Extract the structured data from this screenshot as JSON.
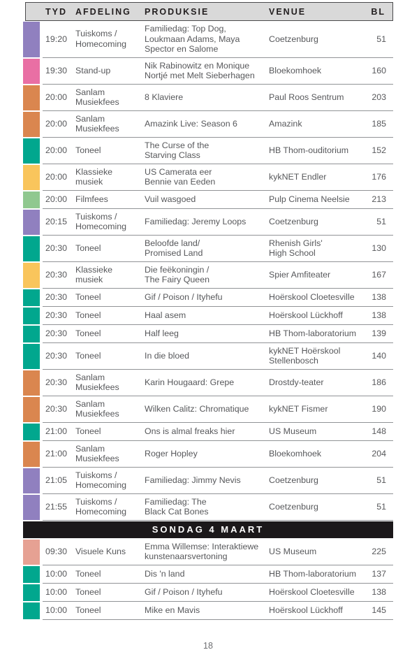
{
  "page": {
    "number": "18"
  },
  "table": {
    "headers": [
      "TYD",
      "AFDELING",
      "PRODUKSIE",
      "VENUE",
      "BL"
    ],
    "category_colors": {
      "tuiskoms": "#9080bf",
      "standup": "#e96fa4",
      "sanlam": "#da864f",
      "toneel": "#01a78e",
      "klassiek": "#f9c55c",
      "filmfees": "#90c88f",
      "visuele": "#e6a193"
    },
    "sections": [
      {
        "banner": null,
        "rows": [
          {
            "tyd": "19:20",
            "category": "tuiskoms",
            "afdeling": "Tuiskoms /\nHomecoming",
            "produksie": "Familiedag: Top Dog,\nLoukmaan Adams, Maya\nSpector en Salome",
            "venue": "Coetzenburg",
            "bl": "51"
          },
          {
            "tyd": "19:30",
            "category": "standup",
            "afdeling": "Stand-up",
            "produksie": "Nik Rabinowitz en Monique\nNortjé met Melt Sieberhagen",
            "venue": "Bloekomhoek",
            "bl": "160"
          },
          {
            "tyd": "20:00",
            "category": "sanlam",
            "afdeling": "Sanlam\nMusiekfees",
            "produksie": "8 Klaviere",
            "venue": "Paul Roos Sentrum",
            "bl": "203"
          },
          {
            "tyd": "20:00",
            "category": "sanlam",
            "afdeling": "Sanlam\nMusiekfees",
            "produksie": "Amazink Live: Season 6",
            "venue": "Amazink",
            "bl": "185"
          },
          {
            "tyd": "20:00",
            "category": "toneel",
            "afdeling": "Toneel",
            "produksie": "The Curse of the\nStarving Class",
            "venue": "HB Thom-ouditorium",
            "bl": "152"
          },
          {
            "tyd": "20:00",
            "category": "klassiek",
            "afdeling": "Klassieke\nmusiek",
            "produksie": "US Camerata eer\nBennie van Eeden",
            "venue": "kykNET Endler",
            "bl": "176"
          },
          {
            "tyd": "20:00",
            "category": "filmfees",
            "afdeling": "Filmfees",
            "produksie": "Vuil wasgoed",
            "venue": "Pulp Cinema Neelsie",
            "bl": "213"
          },
          {
            "tyd": "20:15",
            "category": "tuiskoms",
            "afdeling": "Tuiskoms /\nHomecoming",
            "produksie": "Familiedag: Jeremy Loops",
            "venue": "Coetzenburg",
            "bl": "51"
          },
          {
            "tyd": "20:30",
            "category": "toneel",
            "afdeling": "Toneel",
            "produksie": "Beloofde land/\nPromised Land",
            "venue": "Rhenish Girls'\nHigh School",
            "bl": "130"
          },
          {
            "tyd": "20:30",
            "category": "klassiek",
            "afdeling": "Klassieke\nmusiek",
            "produksie": "Die feëkoningin /\nThe Fairy Queen",
            "venue": "Spier Amfiteater",
            "bl": "167"
          },
          {
            "tyd": "20:30",
            "category": "toneel",
            "afdeling": "Toneel",
            "produksie": "Gif / Poison / Ityhefu",
            "venue": "Hoërskool Cloetesville",
            "bl": "138"
          },
          {
            "tyd": "20:30",
            "category": "toneel",
            "afdeling": "Toneel",
            "produksie": "Haal asem",
            "venue": "Hoërskool Lückhoff",
            "bl": "138"
          },
          {
            "tyd": "20:30",
            "category": "toneel",
            "afdeling": "Toneel",
            "produksie": "Half leeg",
            "venue": "HB Thom-laboratorium",
            "bl": "139"
          },
          {
            "tyd": "20:30",
            "category": "toneel",
            "afdeling": "Toneel",
            "produksie": "In die bloed",
            "venue": "kykNET Hoërskool\nStellenbosch",
            "bl": "140"
          },
          {
            "tyd": "20:30",
            "category": "sanlam",
            "afdeling": "Sanlam\nMusiekfees",
            "produksie": "Karin Hougaard: Grepe",
            "venue": "Drostdy-teater",
            "bl": "186"
          },
          {
            "tyd": "20:30",
            "category": "sanlam",
            "afdeling": "Sanlam\nMusiekfees",
            "produksie": "Wilken Calitz: Chromatique",
            "venue": "kykNET Fismer",
            "bl": "190"
          },
          {
            "tyd": "21:00",
            "category": "toneel",
            "afdeling": "Toneel",
            "produksie": "Ons is almal freaks hier",
            "venue": "US Museum",
            "bl": "148"
          },
          {
            "tyd": "21:00",
            "category": "sanlam",
            "afdeling": "Sanlam\nMusiekfees",
            "produksie": "Roger Hopley",
            "venue": "Bloekomhoek",
            "bl": "204"
          },
          {
            "tyd": "21:05",
            "category": "tuiskoms",
            "afdeling": "Tuiskoms /\nHomecoming",
            "produksie": "Familiedag: Jimmy Nevis",
            "venue": "Coetzenburg",
            "bl": "51"
          },
          {
            "tyd": "21:55",
            "category": "tuiskoms",
            "afdeling": "Tuiskoms /\nHomecoming",
            "produksie": "Familiedag: The\nBlack Cat Bones",
            "venue": "Coetzenburg",
            "bl": "51"
          }
        ]
      },
      {
        "banner": "SONDAG 4 MAART",
        "rows": [
          {
            "tyd": "09:30",
            "category": "visuele",
            "afdeling": "Visuele Kuns",
            "produksie": "Emma Willemse: Interaktiewe\nkunstenaarsvertoning",
            "venue": "US Museum",
            "bl": "225"
          },
          {
            "tyd": "10:00",
            "category": "toneel",
            "afdeling": "Toneel",
            "produksie": "Dis 'n land",
            "venue": "HB Thom-laboratorium",
            "bl": "137"
          },
          {
            "tyd": "10:00",
            "category": "toneel",
            "afdeling": "Toneel",
            "produksie": "Gif / Poison / Ityhefu",
            "venue": "Hoërskool Cloetesville",
            "bl": "138"
          },
          {
            "tyd": "10:00",
            "category": "toneel",
            "afdeling": "Toneel",
            "produksie": "Mike en Mavis",
            "venue": "Hoërskool Lückhoff",
            "bl": "145"
          }
        ]
      }
    ]
  }
}
